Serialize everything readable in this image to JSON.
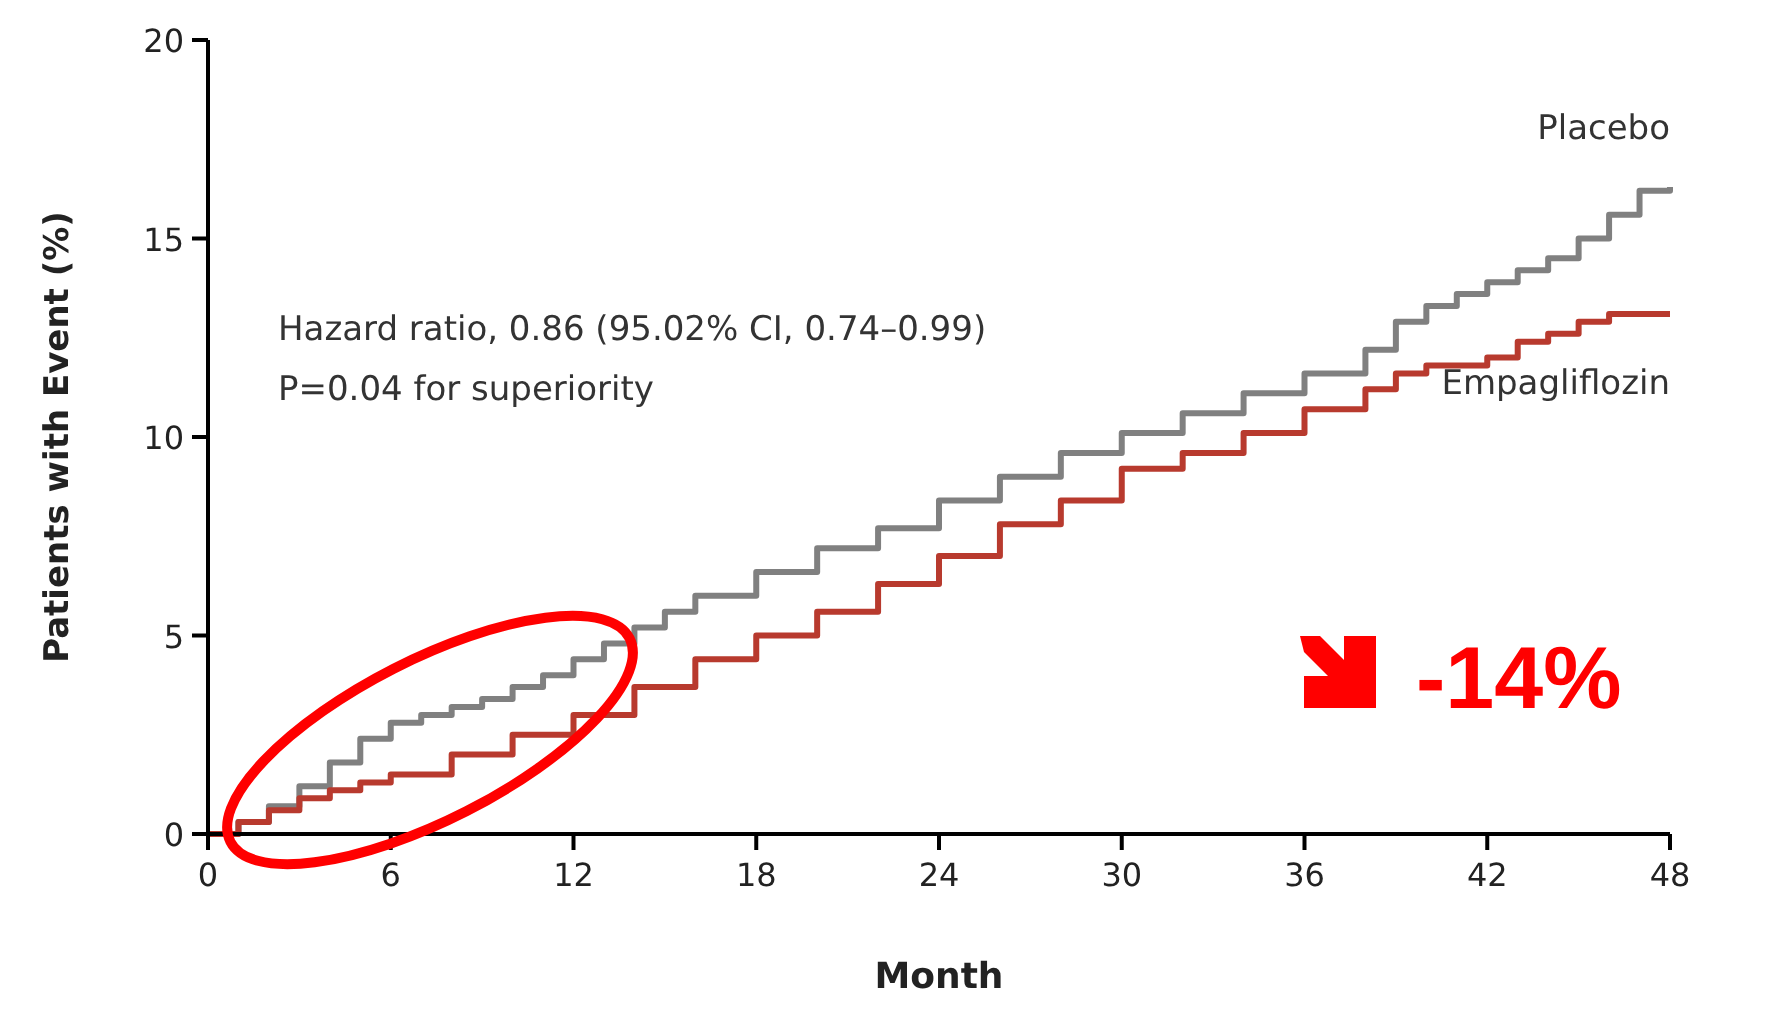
{
  "chart_data": {
    "type": "step",
    "xlabel": "Month",
    "ylabel": "Patients with Event (%)",
    "xlim": [
      0,
      48
    ],
    "xticks": [
      0,
      6,
      12,
      18,
      24,
      30,
      36,
      42,
      48
    ],
    "ylim": [
      0,
      20
    ],
    "yticks": [
      0,
      5,
      10,
      15,
      20
    ],
    "grid": false,
    "line_style": "solid",
    "marker": "none",
    "annotations": [
      "Hazard ratio, 0.86 (95.02% CI, 0.74–0.99)",
      "P=0.04 for superiority",
      "-14%"
    ],
    "series": [
      {
        "name": "Placebo",
        "color": "#808080",
        "x": [
          0,
          1,
          2,
          3,
          4,
          5,
          6,
          7,
          8,
          9,
          10,
          11,
          12,
          13,
          14,
          15,
          16,
          18,
          20,
          22,
          24,
          26,
          28,
          30,
          32,
          34,
          36,
          38,
          39,
          40,
          41,
          42,
          43,
          44,
          45,
          46,
          47,
          48
        ],
        "values": [
          0,
          0.3,
          0.7,
          1.2,
          1.8,
          2.4,
          2.8,
          3.0,
          3.2,
          3.4,
          3.7,
          4.0,
          4.4,
          4.8,
          5.2,
          5.6,
          6.0,
          6.6,
          7.2,
          7.7,
          8.4,
          9.0,
          9.6,
          10.1,
          10.6,
          11.1,
          11.6,
          12.2,
          12.9,
          13.3,
          13.6,
          13.9,
          14.2,
          14.5,
          15.0,
          15.6,
          16.2,
          16.3
        ]
      },
      {
        "name": "Empagliflozin",
        "color": "#b83a2e",
        "x": [
          0,
          1,
          2,
          3,
          4,
          5,
          6,
          8,
          10,
          12,
          14,
          16,
          18,
          20,
          22,
          24,
          26,
          28,
          30,
          32,
          34,
          36,
          38,
          39,
          40,
          41,
          42,
          43,
          44,
          45,
          46,
          47,
          48
        ],
        "values": [
          0,
          0.3,
          0.6,
          0.9,
          1.1,
          1.3,
          1.5,
          2.0,
          2.5,
          3.0,
          3.7,
          4.4,
          5.0,
          5.6,
          6.3,
          7.0,
          7.8,
          8.4,
          9.2,
          9.6,
          10.1,
          10.7,
          11.2,
          11.6,
          11.8,
          11.8,
          12.0,
          12.4,
          12.6,
          12.9,
          13.1,
          13.1,
          13.1
        ]
      }
    ]
  }
}
